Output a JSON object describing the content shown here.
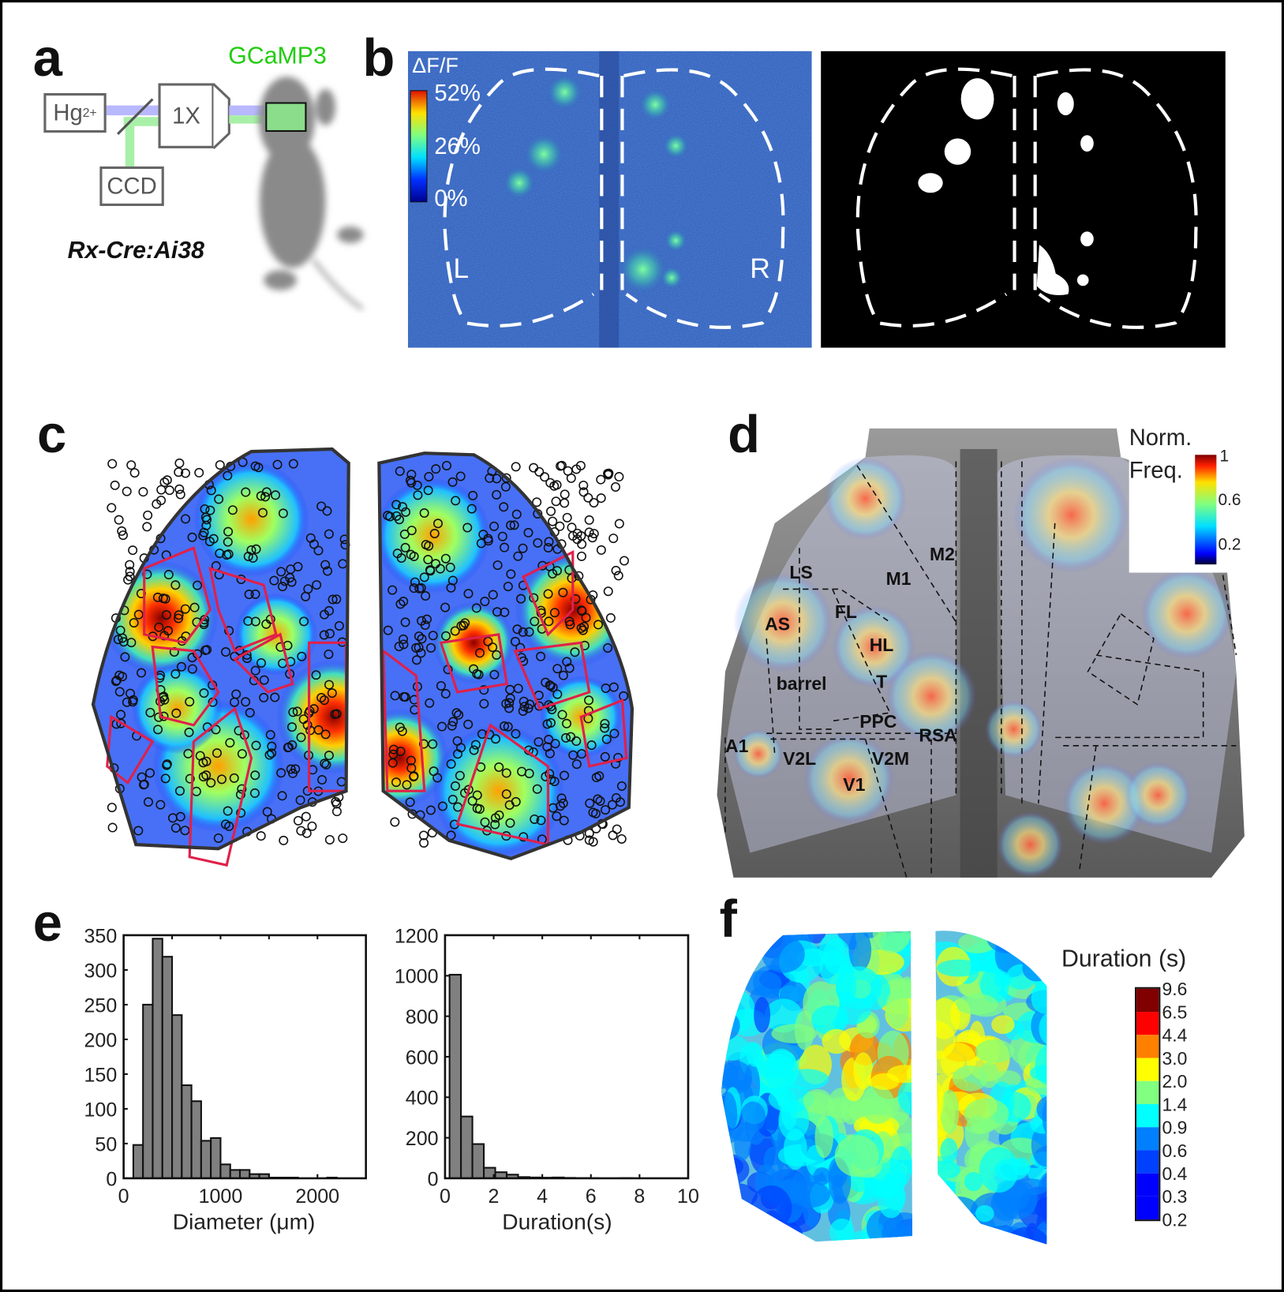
{
  "panels": {
    "a": {
      "letter": "a",
      "light_source": "Hg",
      "light_source_sup": "2+",
      "objective": "1X",
      "camera": "CCD",
      "indicator": "GCaMP3",
      "mouse_line": "Rx-Cre:Ai38",
      "colors": {
        "excitation": "#b8b8ff",
        "emission": "#a8f0a8",
        "indicator_text": "#22cc11"
      }
    },
    "b": {
      "letter": "b",
      "colorbar_title": "ΔF/F",
      "colorbar_ticks": [
        "52%",
        "26%",
        "0%"
      ],
      "left_label": "L",
      "right_label": "R"
    },
    "c": {
      "letter": "c"
    },
    "d": {
      "letter": "d",
      "colorbar_title_1": "Norm.",
      "colorbar_title_2": "Freq.",
      "colorbar_ticks": [
        "1",
        "0.6",
        "0.2"
      ],
      "regions": [
        "M2",
        "LS",
        "M1",
        "FL",
        "AS",
        "HL",
        "barrel",
        "T",
        "PPC",
        "RSA",
        "A1",
        "V2L",
        "V2M",
        "V1"
      ]
    },
    "f": {
      "letter": "f",
      "colorbar_title": "Duration (s)",
      "colorbar_ticks": [
        "9.6",
        "6.5",
        "4.4",
        "3.0",
        "2.0",
        "1.4",
        "0.9",
        "0.6",
        "0.4",
        "0.3",
        "0.2"
      ],
      "colorbar_colors": [
        "#800000",
        "#ff0000",
        "#ff8000",
        "#ffff00",
        "#80ff80",
        "#00ffff",
        "#0080ff",
        "#0040ff",
        "#0000ff",
        "#0000ff"
      ]
    }
  },
  "chart_data": [
    {
      "type": "bar",
      "panel": "e",
      "letter": "e",
      "xlabel": "Diameter (μm)",
      "ylabel": "",
      "bin_width": 100,
      "bin_centers": [
        150,
        250,
        350,
        450,
        550,
        650,
        750,
        850,
        950,
        1050,
        1150,
        1250,
        1350,
        1450,
        1550,
        1650,
        1750,
        1850,
        1950,
        2050,
        2150
      ],
      "values": [
        48,
        250,
        345,
        319,
        235,
        134,
        111,
        54,
        58,
        20,
        12,
        12,
        6,
        6,
        1,
        1,
        1,
        0,
        0,
        0,
        1
      ],
      "xlim": [
        0,
        2500
      ],
      "ylim": [
        0,
        350
      ],
      "xticks": [
        0,
        500,
        1000,
        1500,
        2000
      ],
      "xtick_labels": [
        "0",
        "1000",
        "2000"
      ],
      "xtick_label_values": [
        0,
        1000,
        2000
      ],
      "yticks": [
        0,
        50,
        100,
        150,
        200,
        250,
        300,
        350
      ],
      "bar_color": "#808080",
      "grid": false
    },
    {
      "type": "bar",
      "panel": "e",
      "xlabel": "Duration(s)",
      "ylabel": "",
      "bin_width": 0.47,
      "bin_centers": [
        0.42,
        0.89,
        1.36,
        1.83,
        2.3,
        2.77,
        3.24,
        3.71,
        4.18,
        4.65,
        5.12,
        5.59,
        6.06,
        6.53,
        7.0,
        7.47
      ],
      "values": [
        1005,
        305,
        169,
        52,
        30,
        18,
        6,
        4,
        3,
        4,
        2,
        1,
        1,
        0,
        0,
        1
      ],
      "xlim": [
        0,
        10
      ],
      "ylim": [
        0,
        1200
      ],
      "xticks": [
        0,
        2,
        4,
        6,
        8,
        10
      ],
      "xtick_labels": [
        "0",
        "2",
        "4",
        "6",
        "8",
        "10"
      ],
      "xtick_label_values": [
        0,
        2,
        4,
        6,
        8,
        10
      ],
      "yticks": [
        0,
        200,
        400,
        600,
        800,
        1000,
        1200
      ],
      "bar_color": "#808080",
      "grid": false
    }
  ]
}
